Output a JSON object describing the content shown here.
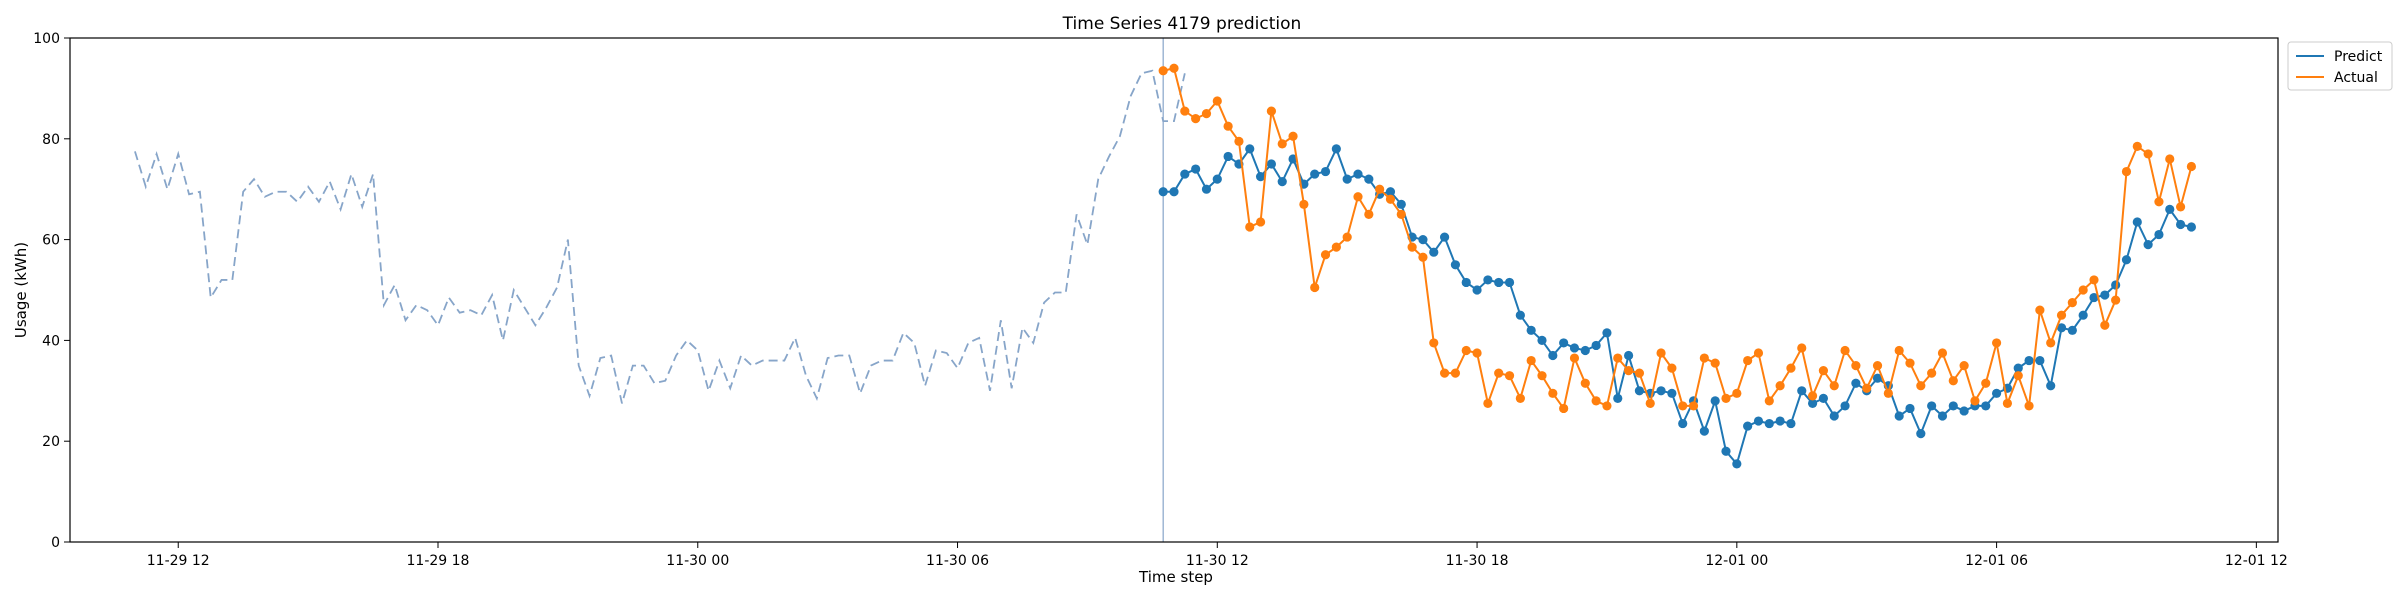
{
  "chart_data": {
    "type": "line",
    "title": "Time Series 4179 prediction",
    "xlabel": "Time step",
    "ylabel": "Usage (kWh)",
    "ylim": [
      0,
      100
    ],
    "yticks": [
      0,
      20,
      40,
      60,
      80,
      100
    ],
    "xlim": [
      "2024-11-29 09:30",
      "2024-12-01 12:30"
    ],
    "xticks": [
      {
        "value": "2024-11-29 12:00",
        "label": "11-29 12"
      },
      {
        "value": "2024-11-29 18:00",
        "label": "11-29 18"
      },
      {
        "value": "2024-11-30 00:00",
        "label": "11-30 00"
      },
      {
        "value": "2024-11-30 06:00",
        "label": "11-30 06"
      },
      {
        "value": "2024-11-30 12:00",
        "label": "11-30 12"
      },
      {
        "value": "2024-11-30 18:00",
        "label": "11-30 18"
      },
      {
        "value": "2024-12-01 00:00",
        "label": "12-01 00"
      },
      {
        "value": "2024-12-01 06:00",
        "label": "12-01 06"
      },
      {
        "value": "2024-12-01 12:00",
        "label": "12-01 12"
      }
    ],
    "grid": false,
    "legend_position": "top-right, outside",
    "forecast_start": "2024-11-30 10:45",
    "history": {
      "start": "2024-11-29 11:00",
      "step_minutes": 15,
      "color": "#87a5c9",
      "style": "dashed",
      "values": [
        77.5,
        70.5,
        77,
        70,
        77,
        69,
        69.5,
        48.5,
        52,
        52,
        69.5,
        72,
        68.5,
        69.5,
        69.5,
        67.5,
        70.5,
        67.5,
        71.5,
        66,
        73,
        66.5,
        73,
        47,
        51,
        44,
        47,
        46,
        43,
        48.5,
        45.5,
        46,
        45,
        49,
        40,
        50,
        46.5,
        43,
        46.5,
        50.5,
        60,
        35,
        29,
        36.5,
        37,
        27.5,
        35,
        35,
        31.5,
        32,
        37,
        40,
        38,
        30,
        36,
        30.5,
        37,
        35,
        36,
        36,
        36,
        40.5,
        33,
        28.5,
        36.5,
        37,
        37,
        29.5,
        35,
        36,
        36,
        41.5,
        39.5,
        31,
        38,
        37.5,
        34.5,
        39.5,
        40.5,
        30,
        44,
        30.5,
        42.5,
        39.5,
        47.5,
        49.5,
        49.5,
        65,
        59,
        72,
        76.5,
        80.5,
        88.5,
        93,
        93.5,
        83.5,
        83.5,
        93
      ]
    },
    "series": [
      {
        "name": "Predict",
        "color": "#1f77b4",
        "start": "2024-11-30 10:45",
        "step_minutes": 15,
        "values": [
          69.5,
          69.5,
          73,
          74,
          70,
          72,
          76.5,
          75,
          78,
          72.5,
          75,
          71.5,
          76,
          71,
          73,
          73.5,
          78,
          72,
          73,
          72,
          69,
          69.5,
          67,
          60.5,
          60,
          57.5,
          60.5,
          55,
          51.5,
          50,
          52,
          51.5,
          51.5,
          45,
          42,
          40,
          37,
          39.5,
          38.5,
          38,
          39,
          41.5,
          28.5,
          37,
          30,
          29.5,
          30,
          29.5,
          23.5,
          28,
          22,
          28,
          18,
          15.5,
          23,
          24,
          23.5,
          24,
          23.5,
          30,
          27.5,
          28.5,
          25,
          27,
          31.5,
          30,
          32.5,
          31,
          25,
          26.5,
          21.5,
          27,
          25,
          27,
          26,
          27,
          27,
          29.5,
          30.5,
          34.5,
          36,
          36,
          31,
          42.5,
          42,
          45,
          48.5,
          49,
          51,
          56,
          63.5,
          59,
          61,
          66,
          63,
          62.5
        ]
      },
      {
        "name": "Actual",
        "color": "#ff7f0e",
        "start": "2024-11-30 10:45",
        "step_minutes": 15,
        "values": [
          93.5,
          94,
          85.5,
          84,
          85,
          87.5,
          82.5,
          79.5,
          62.5,
          63.5,
          85.5,
          79,
          80.5,
          67,
          50.5,
          57,
          58.5,
          60.5,
          68.5,
          65,
          70,
          68,
          65,
          58.5,
          56.5,
          39.5,
          33.5,
          33.5,
          38,
          37.5,
          27.5,
          33.5,
          33,
          28.5,
          36,
          33,
          29.5,
          26.5,
          36.5,
          31.5,
          28,
          27,
          36.5,
          34,
          33.5,
          27.5,
          37.5,
          34.5,
          27,
          27,
          36.5,
          35.5,
          28.5,
          29.5,
          36,
          37.5,
          28,
          31,
          34.5,
          38.5,
          29,
          34,
          31,
          38,
          35,
          30.5,
          35,
          29.5,
          38,
          35.5,
          31,
          33.5,
          37.5,
          32,
          35,
          28,
          31.5,
          39.5,
          27.5,
          33,
          27,
          46,
          39.5,
          45,
          47.5,
          50,
          52,
          43,
          48,
          73.5,
          78.5,
          77,
          67.5,
          76,
          66.5,
          74.5
        ]
      }
    ]
  }
}
